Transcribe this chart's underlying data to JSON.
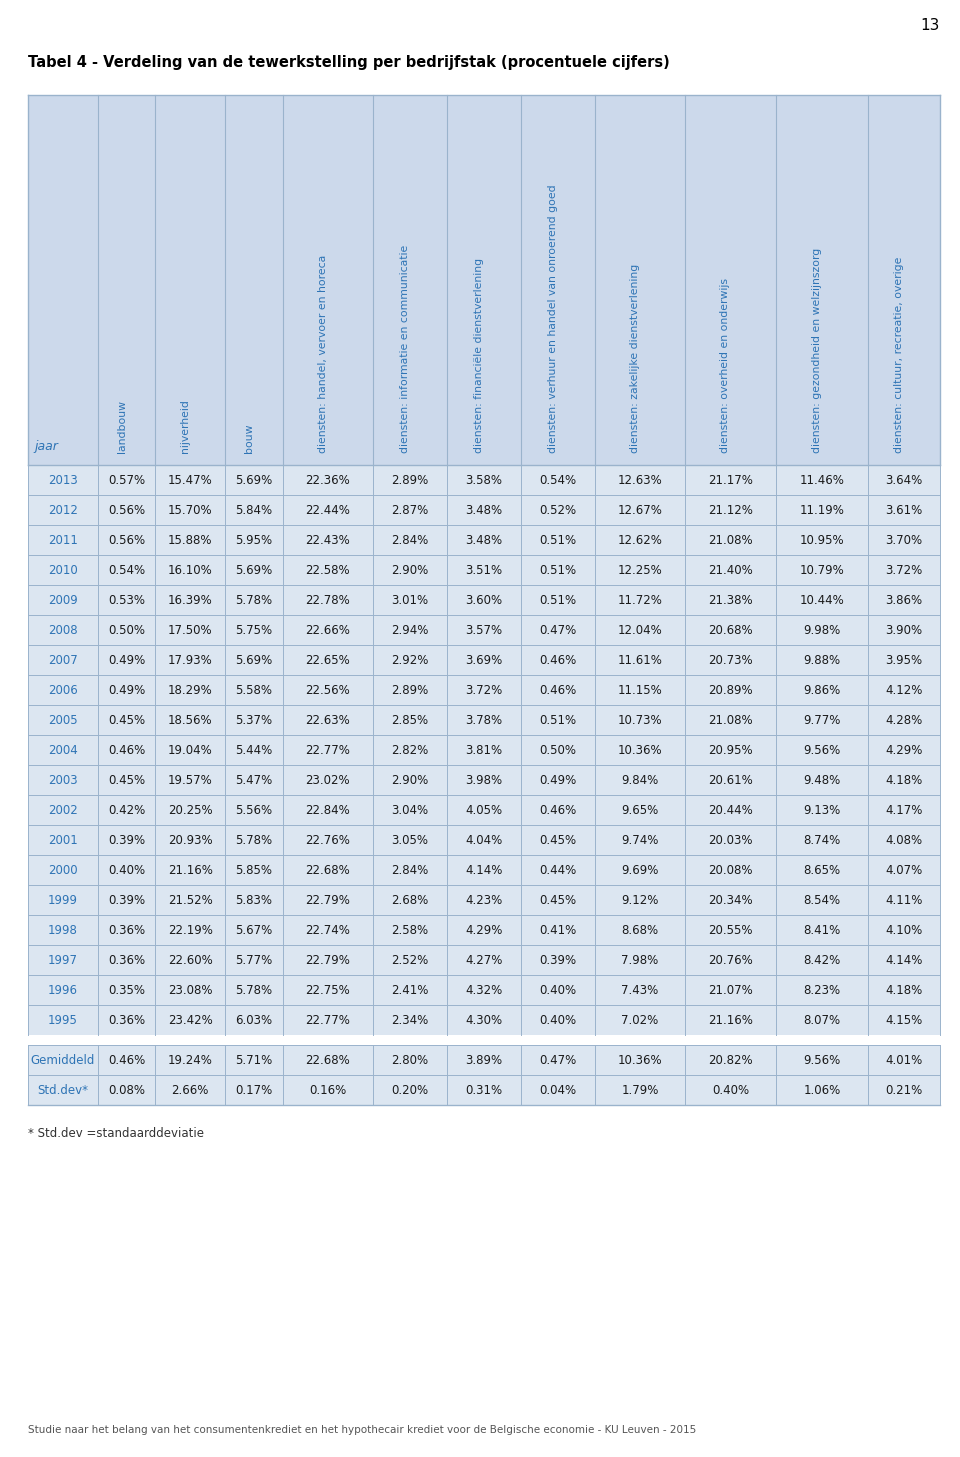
{
  "title": "Tabel 4 - Verdeling van de tewerkstelling per bedrijfstak (procentuele cijfers)",
  "page_number": "13",
  "footer": "Studie naar het belang van het consumentenkrediet en het hypothecair krediet voor de Belgische economie - KU Leuven - 2015",
  "footnote": "* Std.dev =standaarddeviatie",
  "col_headers": [
    "jaar",
    "landbouw",
    "nijverheid",
    "bouw",
    "diensten: handel, vervoer en horeca",
    "diensten: informatie en communicatie",
    "diensten: financiële dienstverlening",
    "diensten: verhuur en handel van onroerend goed",
    "diensten: zakelijke dienstverlening",
    "diensten: overheid en onderwijs",
    "diensten: gezondheid en welzijnszorg",
    "diensten: cultuur, recreatie, overige"
  ],
  "rows": [
    [
      "2013",
      "0.57%",
      "15.47%",
      "5.69%",
      "22.36%",
      "2.89%",
      "3.58%",
      "0.54%",
      "12.63%",
      "21.17%",
      "11.46%",
      "3.64%"
    ],
    [
      "2012",
      "0.56%",
      "15.70%",
      "5.84%",
      "22.44%",
      "2.87%",
      "3.48%",
      "0.52%",
      "12.67%",
      "21.12%",
      "11.19%",
      "3.61%"
    ],
    [
      "2011",
      "0.56%",
      "15.88%",
      "5.95%",
      "22.43%",
      "2.84%",
      "3.48%",
      "0.51%",
      "12.62%",
      "21.08%",
      "10.95%",
      "3.70%"
    ],
    [
      "2010",
      "0.54%",
      "16.10%",
      "5.69%",
      "22.58%",
      "2.90%",
      "3.51%",
      "0.51%",
      "12.25%",
      "21.40%",
      "10.79%",
      "3.72%"
    ],
    [
      "2009",
      "0.53%",
      "16.39%",
      "5.78%",
      "22.78%",
      "3.01%",
      "3.60%",
      "0.51%",
      "11.72%",
      "21.38%",
      "10.44%",
      "3.86%"
    ],
    [
      "2008",
      "0.50%",
      "17.50%",
      "5.75%",
      "22.66%",
      "2.94%",
      "3.57%",
      "0.47%",
      "12.04%",
      "20.68%",
      "9.98%",
      "3.90%"
    ],
    [
      "2007",
      "0.49%",
      "17.93%",
      "5.69%",
      "22.65%",
      "2.92%",
      "3.69%",
      "0.46%",
      "11.61%",
      "20.73%",
      "9.88%",
      "3.95%"
    ],
    [
      "2006",
      "0.49%",
      "18.29%",
      "5.58%",
      "22.56%",
      "2.89%",
      "3.72%",
      "0.46%",
      "11.15%",
      "20.89%",
      "9.86%",
      "4.12%"
    ],
    [
      "2005",
      "0.45%",
      "18.56%",
      "5.37%",
      "22.63%",
      "2.85%",
      "3.78%",
      "0.51%",
      "10.73%",
      "21.08%",
      "9.77%",
      "4.28%"
    ],
    [
      "2004",
      "0.46%",
      "19.04%",
      "5.44%",
      "22.77%",
      "2.82%",
      "3.81%",
      "0.50%",
      "10.36%",
      "20.95%",
      "9.56%",
      "4.29%"
    ],
    [
      "2003",
      "0.45%",
      "19.57%",
      "5.47%",
      "23.02%",
      "2.90%",
      "3.98%",
      "0.49%",
      "9.84%",
      "20.61%",
      "9.48%",
      "4.18%"
    ],
    [
      "2002",
      "0.42%",
      "20.25%",
      "5.56%",
      "22.84%",
      "3.04%",
      "4.05%",
      "0.46%",
      "9.65%",
      "20.44%",
      "9.13%",
      "4.17%"
    ],
    [
      "2001",
      "0.39%",
      "20.93%",
      "5.78%",
      "22.76%",
      "3.05%",
      "4.04%",
      "0.45%",
      "9.74%",
      "20.03%",
      "8.74%",
      "4.08%"
    ],
    [
      "2000",
      "0.40%",
      "21.16%",
      "5.85%",
      "22.68%",
      "2.84%",
      "4.14%",
      "0.44%",
      "9.69%",
      "20.08%",
      "8.65%",
      "4.07%"
    ],
    [
      "1999",
      "0.39%",
      "21.52%",
      "5.83%",
      "22.79%",
      "2.68%",
      "4.23%",
      "0.45%",
      "9.12%",
      "20.34%",
      "8.54%",
      "4.11%"
    ],
    [
      "1998",
      "0.36%",
      "22.19%",
      "5.67%",
      "22.74%",
      "2.58%",
      "4.29%",
      "0.41%",
      "8.68%",
      "20.55%",
      "8.41%",
      "4.10%"
    ],
    [
      "1997",
      "0.36%",
      "22.60%",
      "5.77%",
      "22.79%",
      "2.52%",
      "4.27%",
      "0.39%",
      "7.98%",
      "20.76%",
      "8.42%",
      "4.14%"
    ],
    [
      "1996",
      "0.35%",
      "23.08%",
      "5.78%",
      "22.75%",
      "2.41%",
      "4.32%",
      "0.40%",
      "7.43%",
      "21.07%",
      "8.23%",
      "4.18%"
    ],
    [
      "1995",
      "0.36%",
      "23.42%",
      "6.03%",
      "22.77%",
      "2.34%",
      "4.30%",
      "0.40%",
      "7.02%",
      "21.16%",
      "8.07%",
      "4.15%"
    ]
  ],
  "gemiddeld_row": [
    "Gemiddeld",
    "0.46%",
    "19.24%",
    "5.71%",
    "22.68%",
    "2.80%",
    "3.89%",
    "0.47%",
    "10.36%",
    "20.82%",
    "9.56%",
    "4.01%"
  ],
  "stddev_row": [
    "Std.dev*",
    "0.08%",
    "2.66%",
    "0.17%",
    "0.16%",
    "0.20%",
    "0.31%",
    "0.04%",
    "1.79%",
    "0.40%",
    "1.06%",
    "0.21%"
  ],
  "header_bg": "#ccd9eb",
  "data_row_bg": "#dce6f1",
  "year_color": "#2e74b5",
  "data_text_color": "#1a1a1a",
  "header_text_color": "#2e74b5",
  "special_year_color": "#2e74b5",
  "grid_color": "#9ab3cc",
  "title_color": "#000000",
  "background_color": "#ffffff"
}
